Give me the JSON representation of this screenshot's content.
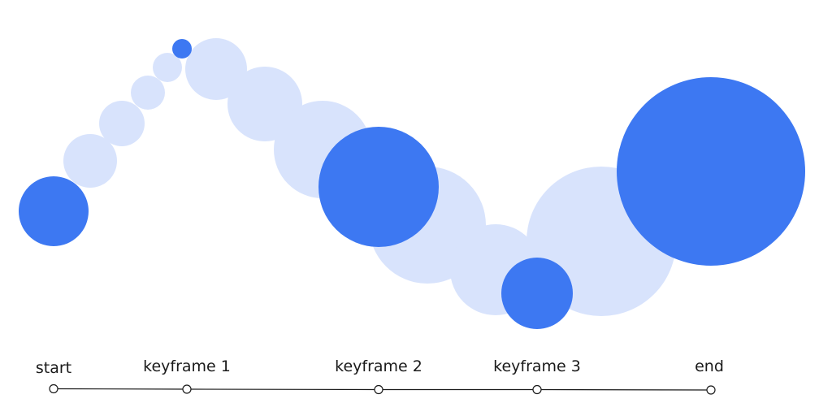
{
  "colors": {
    "keyframe_fill": "#3D78F2",
    "tween_fill": "#D8E3FC",
    "timeline": "#1A1A1A"
  },
  "timeline": {
    "markers": [
      {
        "id": "start",
        "label": "start"
      },
      {
        "id": "keyframe-1",
        "label": "keyframe 1"
      },
      {
        "id": "keyframe-2",
        "label": "keyframe 2"
      },
      {
        "id": "keyframe-3",
        "label": "keyframe 3"
      },
      {
        "id": "end",
        "label": "end"
      }
    ]
  },
  "circles": [
    {
      "id": "start",
      "kind": "keyframe"
    },
    {
      "id": "tween-1",
      "kind": "tween"
    },
    {
      "id": "tween-2",
      "kind": "tween"
    },
    {
      "id": "tween-3",
      "kind": "tween"
    },
    {
      "id": "tween-4",
      "kind": "tween"
    },
    {
      "id": "keyframe-1",
      "kind": "keyframe"
    },
    {
      "id": "tween-5",
      "kind": "tween"
    },
    {
      "id": "tween-6",
      "kind": "tween"
    },
    {
      "id": "tween-7",
      "kind": "tween"
    },
    {
      "id": "tween-8",
      "kind": "tween"
    },
    {
      "id": "keyframe-2",
      "kind": "keyframe"
    },
    {
      "id": "tween-9",
      "kind": "tween"
    },
    {
      "id": "keyframe-3",
      "kind": "keyframe"
    },
    {
      "id": "tween-10",
      "kind": "tween"
    },
    {
      "id": "end",
      "kind": "keyframe"
    }
  ]
}
